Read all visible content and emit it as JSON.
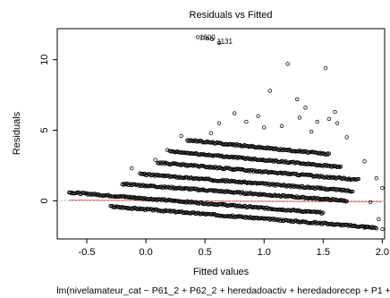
{
  "chart_data": {
    "type": "scatter",
    "title": "Residuals vs Fitted",
    "xlabel": "Fitted values",
    "sublabel": "lm(nivelamateur_cat ~ P61_2 + P62_2 + heredadoactiv + heredadorecep + P1 +",
    "ylabel": "Residuals",
    "xlim": [
      -0.75,
      2.02
    ],
    "ylim": [
      -2.7,
      12.2
    ],
    "x_ticks": [
      -0.5,
      0.0,
      0.5,
      1.0,
      1.5,
      2.0
    ],
    "x_tick_labels": [
      "-0.5",
      "0.0",
      "0.5",
      "1.0",
      "1.5",
      "2.0"
    ],
    "y_ticks": [
      0,
      5,
      10
    ],
    "y_tick_labels": [
      "0",
      "5",
      "10"
    ],
    "grid": false,
    "annotations": [
      {
        "text": "1131",
        "x": 0.58,
        "y": 11.3
      },
      {
        "text": "1600",
        "x": 0.43,
        "y": 11.6
      }
    ],
    "bands": [
      {
        "x0": -0.65,
        "y0": 0.6,
        "x1": 1.5,
        "y1": -0.85
      },
      {
        "x0": -0.2,
        "y0": 1.2,
        "x1": 1.7,
        "y1": 0.0
      },
      {
        "x0": -0.05,
        "y0": 1.9,
        "x1": 1.75,
        "y1": 0.7
      },
      {
        "x0": 0.1,
        "y0": 2.7,
        "x1": 1.8,
        "y1": 1.5
      },
      {
        "x0": 0.2,
        "y0": 3.5,
        "x1": 1.65,
        "y1": 2.4
      },
      {
        "x0": 0.35,
        "y0": 4.3,
        "x1": 1.55,
        "y1": 3.3
      },
      {
        "x0": -0.3,
        "y0": -0.4,
        "x1": 1.95,
        "y1": -1.9
      }
    ],
    "points": [
      [
        0.44,
        11.6
      ],
      [
        0.48,
        11.55
      ],
      [
        0.52,
        11.5
      ],
      [
        0.56,
        11.45
      ],
      [
        0.62,
        11.2
      ],
      [
        1.2,
        9.7
      ],
      [
        1.52,
        9.4
      ],
      [
        1.05,
        7.8
      ],
      [
        1.28,
        7.2
      ],
      [
        1.35,
        6.6
      ],
      [
        1.6,
        6.3
      ],
      [
        0.75,
        6.2
      ],
      [
        0.95,
        6.0
      ],
      [
        1.45,
        5.6
      ],
      [
        0.62,
        5.5
      ],
      [
        1.15,
        5.3
      ],
      [
        1.62,
        5.5
      ],
      [
        0.3,
        4.6
      ],
      [
        0.55,
        4.8
      ],
      [
        1.7,
        4.5
      ],
      [
        0.18,
        3.6
      ],
      [
        0.08,
        2.9
      ],
      [
        -0.12,
        2.3
      ],
      [
        1.85,
        2.8
      ],
      [
        1.95,
        1.6
      ],
      [
        2.0,
        0.9
      ],
      [
        1.9,
        -0.1
      ],
      [
        1.97,
        -1.3
      ],
      [
        1.85,
        -1.9
      ],
      [
        2.0,
        -2.0
      ],
      [
        1.55,
        5.8
      ],
      [
        0.85,
        5.6
      ],
      [
        1.3,
        5.9
      ],
      [
        1.4,
        4.9
      ],
      [
        1.0,
        5.2
      ]
    ],
    "loess": [
      [
        -0.65,
        0.05
      ],
      [
        0.0,
        0.02
      ],
      [
        0.5,
        -0.02
      ],
      [
        1.0,
        -0.04
      ],
      [
        1.5,
        -0.05
      ],
      [
        2.0,
        -0.06
      ]
    ]
  }
}
